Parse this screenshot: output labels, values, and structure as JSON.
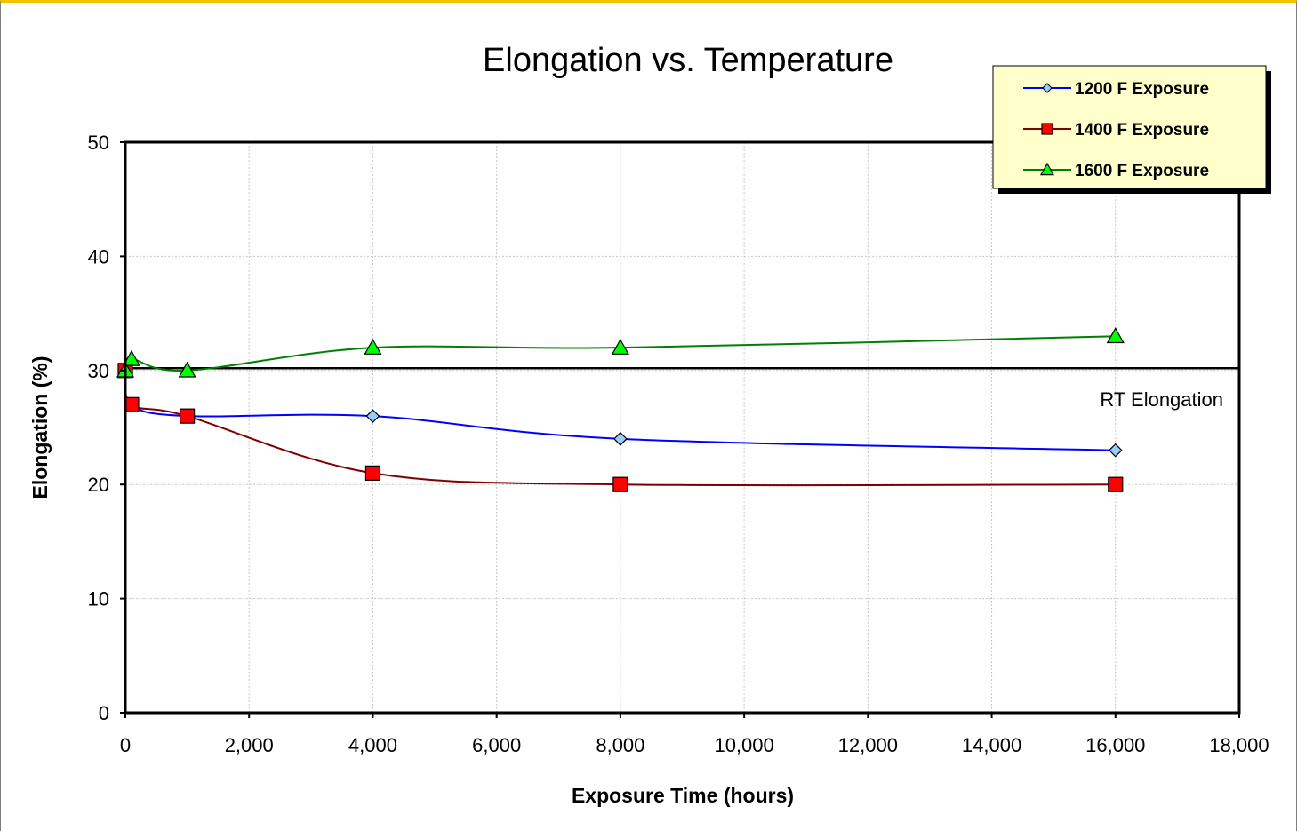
{
  "chart_data": {
    "type": "line",
    "title": "Elongation vs. Temperature",
    "xlabel": "Exposure Time (hours)",
    "ylabel": "Elongation (%)",
    "xlim": [
      0,
      18000
    ],
    "ylim": [
      0,
      50
    ],
    "xticks": [
      0,
      2000,
      4000,
      6000,
      8000,
      10000,
      12000,
      14000,
      16000,
      18000
    ],
    "xtick_labels": [
      "0",
      "2,000",
      "4,000",
      "6,000",
      "8,000",
      "10,000",
      "12,000",
      "14,000",
      "16,000",
      "18,000"
    ],
    "yticks": [
      0,
      10,
      20,
      30,
      40,
      50
    ],
    "ytick_labels": [
      "0",
      "10",
      "20",
      "30",
      "40",
      "50"
    ],
    "grid": true,
    "legend_position": "top-right",
    "series": [
      {
        "name": "1200 F Exposure",
        "color": "#0000ff",
        "marker": "diamond",
        "marker_fill": "#99ccff",
        "x": [
          0,
          100,
          1000,
          4000,
          8000,
          16000
        ],
        "y": [
          30,
          27,
          26,
          26,
          24,
          23
        ]
      },
      {
        "name": "1400 F Exposure",
        "color": "#800000",
        "marker": "square",
        "marker_fill": "#ff0000",
        "x": [
          0,
          100,
          1000,
          4000,
          8000,
          16000
        ],
        "y": [
          30,
          27,
          26,
          21,
          20,
          20
        ]
      },
      {
        "name": "1600 F Exposure",
        "color": "#008000",
        "marker": "triangle",
        "marker_fill": "#00ff00",
        "x": [
          0,
          100,
          1000,
          4000,
          8000,
          16000
        ],
        "y": [
          30,
          31,
          30,
          32,
          32,
          33
        ]
      }
    ],
    "reference_line": {
      "y": 30.2,
      "label": "RT Elongation",
      "color": "#000000"
    }
  },
  "colors": {
    "frame_top": "#f2c200",
    "legend_bg": "#ffffcc"
  }
}
